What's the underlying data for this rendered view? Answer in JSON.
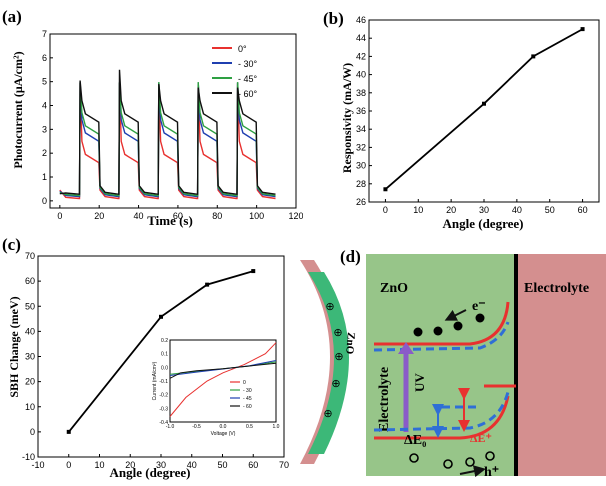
{
  "chart_data": [
    {
      "type": "line",
      "panel_label": "(a)",
      "xlabel": "Time (s)",
      "ylabel": "Photocurrent  (μA/cm²)",
      "xlim": [
        -5,
        120
      ],
      "ylim": [
        -0.3,
        7
      ],
      "xticks": [
        "0",
        "20",
        "40",
        "60",
        "80",
        "100",
        "120"
      ],
      "yticks": [
        "0",
        "1",
        "2",
        "3",
        "4",
        "5",
        "6",
        "7"
      ],
      "legend_position": "top-right",
      "series": [
        {
          "name": "0°",
          "color": "#e8312f",
          "peak": 5.0,
          "on_level": 1.6,
          "off_level": 0.1
        },
        {
          "name": "- 30°",
          "color": "#1f3fb0",
          "peak": 5.0,
          "on_level": 2.5,
          "off_level": 0.18
        },
        {
          "name": "- 45°",
          "color": "#2ea043",
          "peak": 5.0,
          "on_level": 2.8,
          "off_level": 0.22
        },
        {
          "name": "- 60°",
          "color": "#111111",
          "peak": 5.0,
          "on_level": 3.3,
          "off_level": 0.28
        }
      ],
      "cycles": [
        {
          "on": 10,
          "off": 20,
          "black_peak": 5.05
        },
        {
          "on": 30,
          "off": 40,
          "black_peak": 5.5
        },
        {
          "on": 50,
          "off": 60,
          "black_peak": 4.9
        },
        {
          "on": 70,
          "off": 80,
          "black_peak": 4.75
        },
        {
          "on": 90,
          "off": 100,
          "black_peak": 4.75
        }
      ]
    },
    {
      "type": "line",
      "panel_label": "(b)",
      "xlabel": "Angle (degree)",
      "ylabel": "Responsivity (mA/W)",
      "xlim": [
        -5,
        65
      ],
      "ylim": [
        26,
        46
      ],
      "xticks": [
        "0",
        "10",
        "20",
        "30",
        "40",
        "50",
        "60"
      ],
      "yticks": [
        "26",
        "28",
        "30",
        "32",
        "34",
        "36",
        "38",
        "40",
        "42",
        "44",
        "46"
      ],
      "x": [
        0,
        30,
        45,
        60
      ],
      "values": [
        27.4,
        36.8,
        42.0,
        45.0
      ]
    },
    {
      "type": "line",
      "panel_label": "(c)",
      "xlabel": "Angle (degree)",
      "ylabel": "SBH Change (meV)",
      "xlim": [
        -10,
        70
      ],
      "ylim": [
        -10,
        70
      ],
      "xticks": [
        "-10",
        "0",
        "10",
        "20",
        "30",
        "40",
        "50",
        "60",
        "70"
      ],
      "yticks": [
        "-10",
        "0",
        "10",
        "20",
        "30",
        "40",
        "50",
        "60",
        "70"
      ],
      "x": [
        0,
        30,
        45,
        60
      ],
      "values": [
        0,
        45.8,
        58.6,
        64.0
      ],
      "inset": {
        "type": "line",
        "xlabel": "Voltage (V)",
        "ylabel": "Current (mA/cm²)",
        "xlim": [
          -1.0,
          1.0
        ],
        "ylim": [
          -0.4,
          0.2
        ],
        "xticks": [
          "-1.0",
          "-0.5",
          "0.0",
          "0.5",
          "1.0"
        ],
        "yticks": [
          "-0.4",
          "-0.3",
          "-0.2",
          "-0.1",
          "0.0",
          "0.1",
          "0.2"
        ],
        "series": [
          {
            "name": "0",
            "color": "#e8312f"
          },
          {
            "name": "- 30",
            "color": "#2ea043"
          },
          {
            "name": "- 45",
            "color": "#1f3fb0"
          },
          {
            "name": "- 60",
            "color": "#111111"
          }
        ]
      }
    }
  ],
  "diagram_d": {
    "panel_label": "(d)",
    "zno_label": "ZnO",
    "electrolyte_label": "Electrolyte",
    "electrolyte_side_label": "Electrolyte",
    "curved_zno_label": "ZnO",
    "uv_label": "UV",
    "electron_label": "e⁻",
    "hole_label": "h⁺",
    "delta_e0_label": "ΔE₀",
    "delta_eplus_label": "ΔE⁺",
    "plus_symbol": "⊕",
    "colors": {
      "zno": "#97c589",
      "electrolyte": "#d48f8f",
      "band": "#e8312f",
      "band_dashed": "#2f6fd6",
      "uv_arrow": "#8a5bc8"
    }
  }
}
